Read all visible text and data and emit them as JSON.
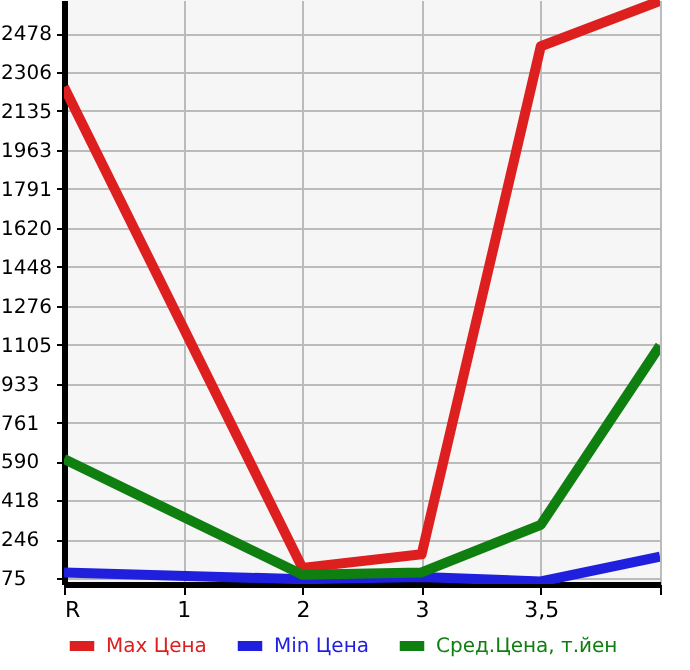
{
  "chart_data": {
    "type": "line",
    "categories": [
      "R",
      "1",
      "2",
      "3",
      "3,5",
      null
    ],
    "series": [
      {
        "name": "Max Цена",
        "color": "#dd1f1f",
        "values": [
          2240,
          null,
          120,
          180,
          2420,
          2620
        ]
      },
      {
        "name": "Min Цена",
        "color": "#1f1fdd",
        "values": [
          100,
          null,
          70,
          80,
          60,
          170
        ]
      },
      {
        "name": "Сред.Цена, т.йен",
        "color": "#0f7f0f",
        "values": [
          600,
          null,
          90,
          100,
          310,
          1100
        ]
      }
    ],
    "ylim": [
      49,
      2624
    ],
    "yticks": [
      75,
      246,
      418,
      590,
      761,
      933,
      1105,
      1276,
      1448,
      1620,
      1791,
      1963,
      2135,
      2306,
      2478
    ],
    "grid": true,
    "legend": "bottom",
    "marker": "none",
    "line_style": "solid"
  }
}
